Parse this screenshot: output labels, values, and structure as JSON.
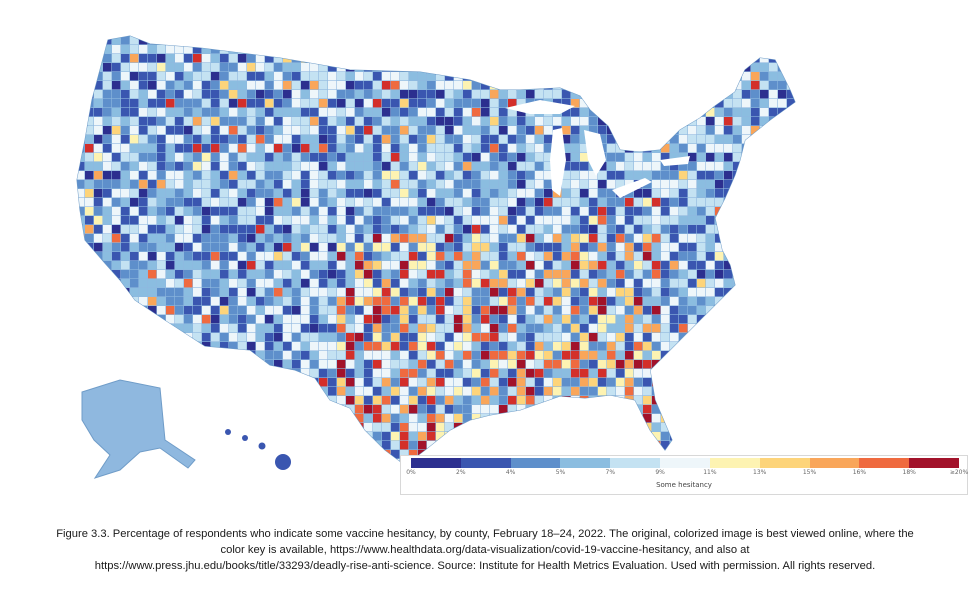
{
  "legend": {
    "title": "Some hesitancy",
    "ticks": [
      "0%",
      "2%",
      "4%",
      "5%",
      "7%",
      "9%",
      "11%",
      "13%",
      "15%",
      "16%",
      "18%",
      "≥20%"
    ],
    "colors": [
      "#2c2f8f",
      "#3a56b0",
      "#5e8fcb",
      "#8bbde0",
      "#c4e2f2",
      "#eef6fa",
      "#fdf3b2",
      "#fdd47a",
      "#f9a65a",
      "#ef6a3f",
      "#d32f2a",
      "#a2122a"
    ]
  },
  "map": {
    "background_color": "#8fb8df",
    "border_color": "#ffffff",
    "no_data_color": "#dddddd"
  },
  "caption": {
    "line1": "Figure 3.3. Percentage of respondents who indicate some vaccine hesitancy, by county, February 18–24, 2022. The original, colorized image is best viewed online, where the",
    "line2": "color key is available, https://www.healthdata.org/data-visualization/covid-19-vaccine-hesitancy, and also at",
    "line3": "https://www.press.jhu.edu/books/title/33293/deadly-rise-anti-science. Source: Institute for Health Metrics Evaluation. Used with permission. All rights reserved."
  }
}
